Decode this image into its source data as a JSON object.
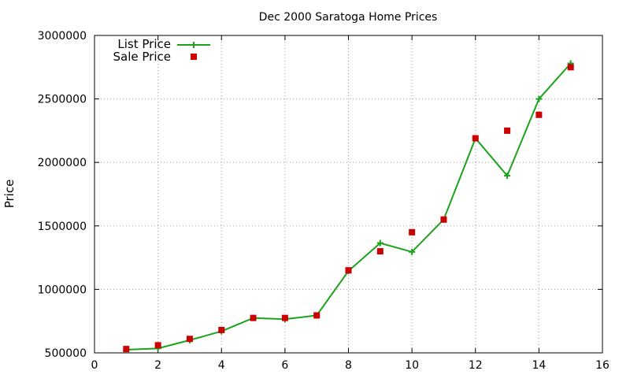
{
  "colors": {
    "list_price": "#1aa31a",
    "sale_price": "#cc0000",
    "grid": "#a0a0a0"
  },
  "chart_data": {
    "type": "line",
    "title": "Dec 2000 Saratoga Home Prices",
    "xlabel": "",
    "ylabel": "Price",
    "xlim": [
      0,
      16
    ],
    "ylim": [
      500000,
      3000000
    ],
    "xticks": [
      0,
      2,
      4,
      6,
      8,
      10,
      12,
      14,
      16
    ],
    "yticks": [
      500000,
      1000000,
      1500000,
      2000000,
      2500000,
      3000000
    ],
    "grid": true,
    "legend_position": "top-left",
    "series": [
      {
        "name": "List Price",
        "style": "line+cross",
        "color": "#1aa31a",
        "x": [
          1,
          2,
          3,
          4,
          5,
          6,
          7,
          8,
          9,
          10,
          11,
          12,
          13,
          14,
          15
        ],
        "y": [
          525000,
          535000,
          600000,
          670000,
          775000,
          765000,
          795000,
          1145000,
          1365000,
          1295000,
          1550000,
          2190000,
          1895000,
          2500000,
          2780000
        ]
      },
      {
        "name": "Sale Price",
        "style": "square",
        "color": "#cc0000",
        "x": [
          1,
          2,
          3,
          4,
          5,
          6,
          7,
          8,
          9,
          10,
          11,
          12,
          13,
          14,
          15
        ],
        "y": [
          530000,
          560000,
          610000,
          680000,
          775000,
          775000,
          795000,
          1150000,
          1300000,
          1450000,
          1550000,
          2190000,
          2250000,
          2375000,
          2750000
        ]
      }
    ]
  }
}
